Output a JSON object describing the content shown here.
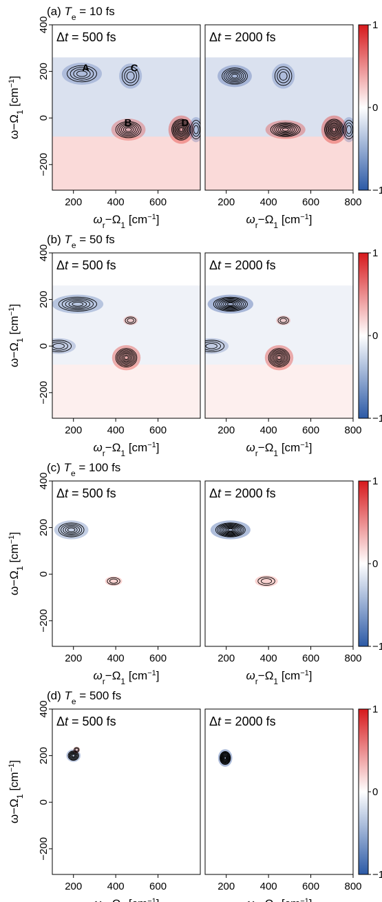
{
  "chart_data": [
    {
      "type": "heatmap",
      "panel_label": "(a)",
      "title_value": "10 fs",
      "subplots": [
        {
          "dt_value": "500 fs",
          "peak_labels": [
            "A",
            "B",
            "C",
            "D"
          ],
          "features": [
            {
              "x": 240,
              "y": 190,
              "amp": -0.35,
              "sx": 70,
              "sy": 35
            },
            {
              "x": 470,
              "y": 180,
              "amp": -0.3,
              "sx": 40,
              "sy": 40
            },
            {
              "x": 460,
              "y": -50,
              "amp": 0.55,
              "sx": 60,
              "sy": 35
            },
            {
              "x": 710,
              "y": -50,
              "amp": 0.85,
              "sx": 45,
              "sy": 45
            },
            {
              "x": 780,
              "y": -50,
              "amp": -0.3,
              "sx": 25,
              "sy": 40
            }
          ]
        },
        {
          "dt_value": "2000 fs",
          "features": [
            {
              "x": 240,
              "y": 180,
              "amp": -0.55,
              "sx": 60,
              "sy": 35
            },
            {
              "x": 470,
              "y": 180,
              "amp": -0.3,
              "sx": 40,
              "sy": 40
            },
            {
              "x": 480,
              "y": -50,
              "amp": 0.65,
              "sx": 70,
              "sy": 30
            },
            {
              "x": 710,
              "y": -50,
              "amp": 0.9,
              "sx": 45,
              "sy": 45
            },
            {
              "x": 780,
              "y": -50,
              "amp": -0.3,
              "sx": 25,
              "sy": 40
            }
          ]
        }
      ]
    },
    {
      "type": "heatmap",
      "panel_label": "(b)",
      "title_value": "50 fs",
      "subplots": [
        {
          "dt_value": "500 fs",
          "features": [
            {
              "x": 220,
              "y": 180,
              "amp": -0.45,
              "sx": 90,
              "sy": 30
            },
            {
              "x": 130,
              "y": 0,
              "amp": -0.25,
              "sx": 60,
              "sy": 25
            },
            {
              "x": 450,
              "y": -50,
              "amp": 0.75,
              "sx": 50,
              "sy": 40
            },
            {
              "x": 470,
              "y": 110,
              "amp": 0.15,
              "sx": 25,
              "sy": 15
            }
          ]
        },
        {
          "dt_value": "2000 fs",
          "features": [
            {
              "x": 220,
              "y": 180,
              "amp": -0.8,
              "sx": 80,
              "sy": 30
            },
            {
              "x": 130,
              "y": 0,
              "amp": -0.25,
              "sx": 60,
              "sy": 25
            },
            {
              "x": 450,
              "y": -50,
              "amp": 0.8,
              "sx": 50,
              "sy": 40
            },
            {
              "x": 470,
              "y": 110,
              "amp": 0.15,
              "sx": 25,
              "sy": 15
            }
          ]
        }
      ]
    },
    {
      "type": "heatmap",
      "panel_label": "(c)",
      "title_value": "100 fs",
      "subplots": [
        {
          "dt_value": "500 fs",
          "features": [
            {
              "x": 190,
              "y": 190,
              "amp": -0.45,
              "sx": 60,
              "sy": 30
            },
            {
              "x": 390,
              "y": -30,
              "amp": 0.15,
              "sx": 30,
              "sy": 15
            }
          ]
        },
        {
          "dt_value": "2000 fs",
          "features": [
            {
              "x": 220,
              "y": 190,
              "amp": -0.85,
              "sx": 70,
              "sy": 30
            },
            {
              "x": 390,
              "y": -30,
              "amp": 0.15,
              "sx": 40,
              "sy": 18
            }
          ]
        }
      ]
    },
    {
      "type": "heatmap",
      "panel_label": "(d)",
      "title_value": "500 fs",
      "subplots": [
        {
          "dt_value": "500 fs",
          "features": [
            {
              "x": 200,
              "y": 200,
              "amp": -0.6,
              "sx": 25,
              "sy": 20
            },
            {
              "x": 215,
              "y": 225,
              "amp": 0.15,
              "sx": 12,
              "sy": 10
            }
          ]
        },
        {
          "dt_value": "2000 fs",
          "features": [
            {
              "x": 195,
              "y": 190,
              "amp": -0.9,
              "sx": 25,
              "sy": 28
            }
          ]
        }
      ]
    }
  ],
  "axes": {
    "xlabel_base": "ω",
    "xlabel_sub": "r",
    "xlabel_rest": "−Ω",
    "xlabel_sub2": "1",
    "xlabel_unit": "[cm",
    "xlabel_sup": "−1",
    "xlabel_close": "]",
    "ylabel_base": "ω−Ω",
    "ylabel_sub": "1",
    "ylabel_unit": "[cm",
    "ylabel_sup": "−1",
    "ylabel_close": "]",
    "title_var": "T",
    "title_sub": "e",
    "title_eq": " = ",
    "dt_prefix": "Δ",
    "dt_var": "t",
    "xlim": [
      100,
      800
    ],
    "ylim": [
      -310,
      400
    ],
    "left_xticks": [
      200,
      400,
      600
    ],
    "right_xticks": [
      200,
      400,
      600,
      800
    ],
    "yticks": [
      -200,
      0,
      200,
      400
    ]
  },
  "colorbar": {
    "ticks": [
      "1",
      "0",
      "−1"
    ],
    "colors": {
      "max": "#d7191c",
      "mid": "#ffffff",
      "min": "#2c5aa6"
    }
  },
  "colors": {
    "contour": "#000000",
    "positive": "#e2342c",
    "negative": "#3458a4"
  }
}
